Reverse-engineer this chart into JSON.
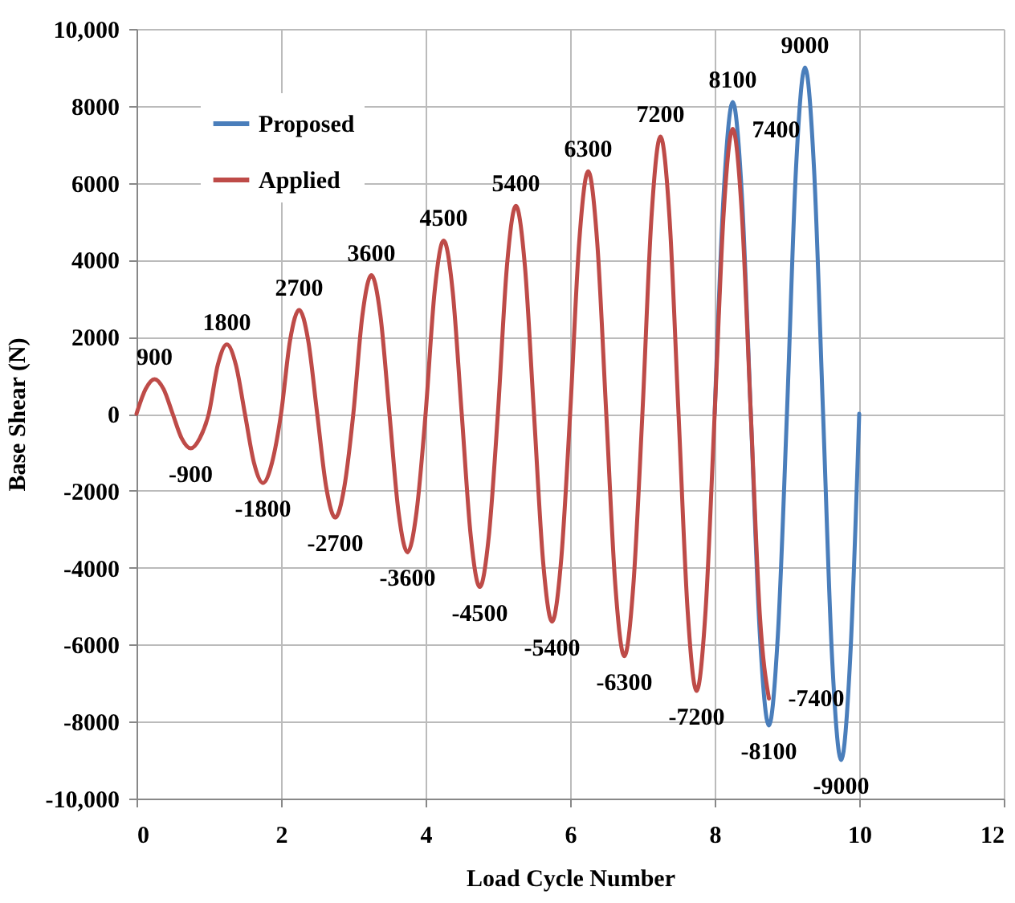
{
  "chart_data": {
    "type": "line",
    "xlabel": "Load Cycle Number",
    "ylabel": "Base Shear (N)",
    "x": [
      0,
      0.125,
      0.25,
      0.375,
      0.5,
      0.625,
      0.75,
      0.875,
      1,
      1.125,
      1.25,
      1.375,
      1.5,
      1.625,
      1.75,
      1.875,
      2,
      2.125,
      2.25,
      2.375,
      2.5,
      2.625,
      2.75,
      2.875,
      3,
      3.125,
      3.25,
      3.375,
      3.5,
      3.625,
      3.75,
      3.875,
      4,
      4.125,
      4.25,
      4.375,
      4.5,
      4.625,
      4.75,
      4.875,
      5,
      5.125,
      5.25,
      5.375,
      5.5,
      5.625,
      5.75,
      5.875,
      6,
      6.125,
      6.25,
      6.375,
      6.5,
      6.625,
      6.75,
      6.875,
      7,
      7.125,
      7.25,
      7.375,
      7.5,
      7.625,
      7.75,
      7.875,
      8,
      8.125,
      8.25,
      8.375,
      8.5,
      8.625,
      8.75,
      8.875,
      9,
      9.125,
      9.25,
      9.375,
      9.5,
      9.625,
      9.75,
      9.875,
      10
    ],
    "series": [
      {
        "name": "Proposed",
        "color": "#4a7ebb",
        "values": [
          null,
          null,
          null,
          null,
          null,
          null,
          null,
          null,
          null,
          null,
          null,
          null,
          null,
          null,
          null,
          null,
          null,
          null,
          null,
          null,
          null,
          null,
          null,
          null,
          null,
          null,
          null,
          null,
          null,
          null,
          null,
          null,
          null,
          null,
          null,
          null,
          null,
          null,
          null,
          null,
          null,
          null,
          null,
          null,
          null,
          null,
          null,
          null,
          null,
          null,
          null,
          null,
          null,
          null,
          null,
          null,
          null,
          null,
          null,
          null,
          null,
          null,
          null,
          null,
          0,
          5730,
          8100,
          5730,
          0,
          -5730,
          -8100,
          -5730,
          0,
          6360,
          9000,
          6360,
          0,
          -6360,
          -9000,
          -6360,
          0
        ]
      },
      {
        "name": "Applied",
        "color": "#be4b48",
        "values": [
          0,
          640,
          900,
          640,
          0,
          -640,
          -900,
          -640,
          0,
          1270,
          1800,
          1270,
          0,
          -1270,
          -1800,
          -1270,
          0,
          1910,
          2700,
          1910,
          0,
          -1910,
          -2700,
          -1910,
          0,
          2550,
          3600,
          2550,
          0,
          -2550,
          -3600,
          -2550,
          0,
          3180,
          4500,
          3180,
          0,
          -3180,
          -4500,
          -3180,
          0,
          3820,
          5400,
          3820,
          0,
          -3820,
          -5400,
          -3820,
          0,
          4450,
          6300,
          4450,
          0,
          -4450,
          -6300,
          -4450,
          0,
          5090,
          7200,
          5090,
          0,
          -5090,
          -7200,
          -5090,
          0,
          5230,
          7400,
          5230,
          0,
          -5230,
          -7400,
          null,
          null,
          null,
          null,
          null,
          null,
          null,
          null,
          null,
          null
        ]
      }
    ],
    "annotations": [
      {
        "text": "900",
        "x": 0.25,
        "y": 900
      },
      {
        "text": "-900",
        "x": 0.75,
        "y": -900
      },
      {
        "text": "1800",
        "x": 1.25,
        "y": 1800
      },
      {
        "text": "-1800",
        "x": 1.75,
        "y": -1800
      },
      {
        "text": "2700",
        "x": 2.25,
        "y": 2700
      },
      {
        "text": "-2700",
        "x": 2.75,
        "y": -2700
      },
      {
        "text": "3600",
        "x": 3.25,
        "y": 3600
      },
      {
        "text": "-3600",
        "x": 3.75,
        "y": -3600
      },
      {
        "text": "4500",
        "x": 4.25,
        "y": 4500
      },
      {
        "text": "-4500",
        "x": 4.75,
        "y": -4500
      },
      {
        "text": "5400",
        "x": 5.25,
        "y": 5400
      },
      {
        "text": "-5400",
        "x": 5.75,
        "y": -5400
      },
      {
        "text": "6300",
        "x": 6.25,
        "y": 6300
      },
      {
        "text": "-6300",
        "x": 6.75,
        "y": -6300
      },
      {
        "text": "7200",
        "x": 7.25,
        "y": 7200
      },
      {
        "text": "-7200",
        "x": 7.75,
        "y": -7200
      },
      {
        "text": "8100",
        "x": 8.25,
        "y": 8100
      },
      {
        "text": "7400",
        "x": 8.25,
        "y": 7400
      },
      {
        "text": "-8100",
        "x": 8.75,
        "y": -8100
      },
      {
        "text": "-7400",
        "x": 8.75,
        "y": -7400
      },
      {
        "text": "9000",
        "x": 9.25,
        "y": 9000
      },
      {
        "text": "-9000",
        "x": 9.75,
        "y": -9000
      }
    ],
    "xlim": [
      0,
      12
    ],
    "xticks": [
      0,
      2,
      4,
      6,
      8,
      10,
      12
    ],
    "ylim": [
      -10000,
      10000
    ],
    "yticks": [
      {
        "value": -10000,
        "label": "-10,000"
      },
      -8000,
      -6000,
      -4000,
      -2000,
      0,
      2000,
      4000,
      6000,
      8000,
      {
        "value": 10000,
        "label": "10,000"
      }
    ],
    "grid": true,
    "legend": "top left",
    "line_style": "solid",
    "marker": "none"
  }
}
